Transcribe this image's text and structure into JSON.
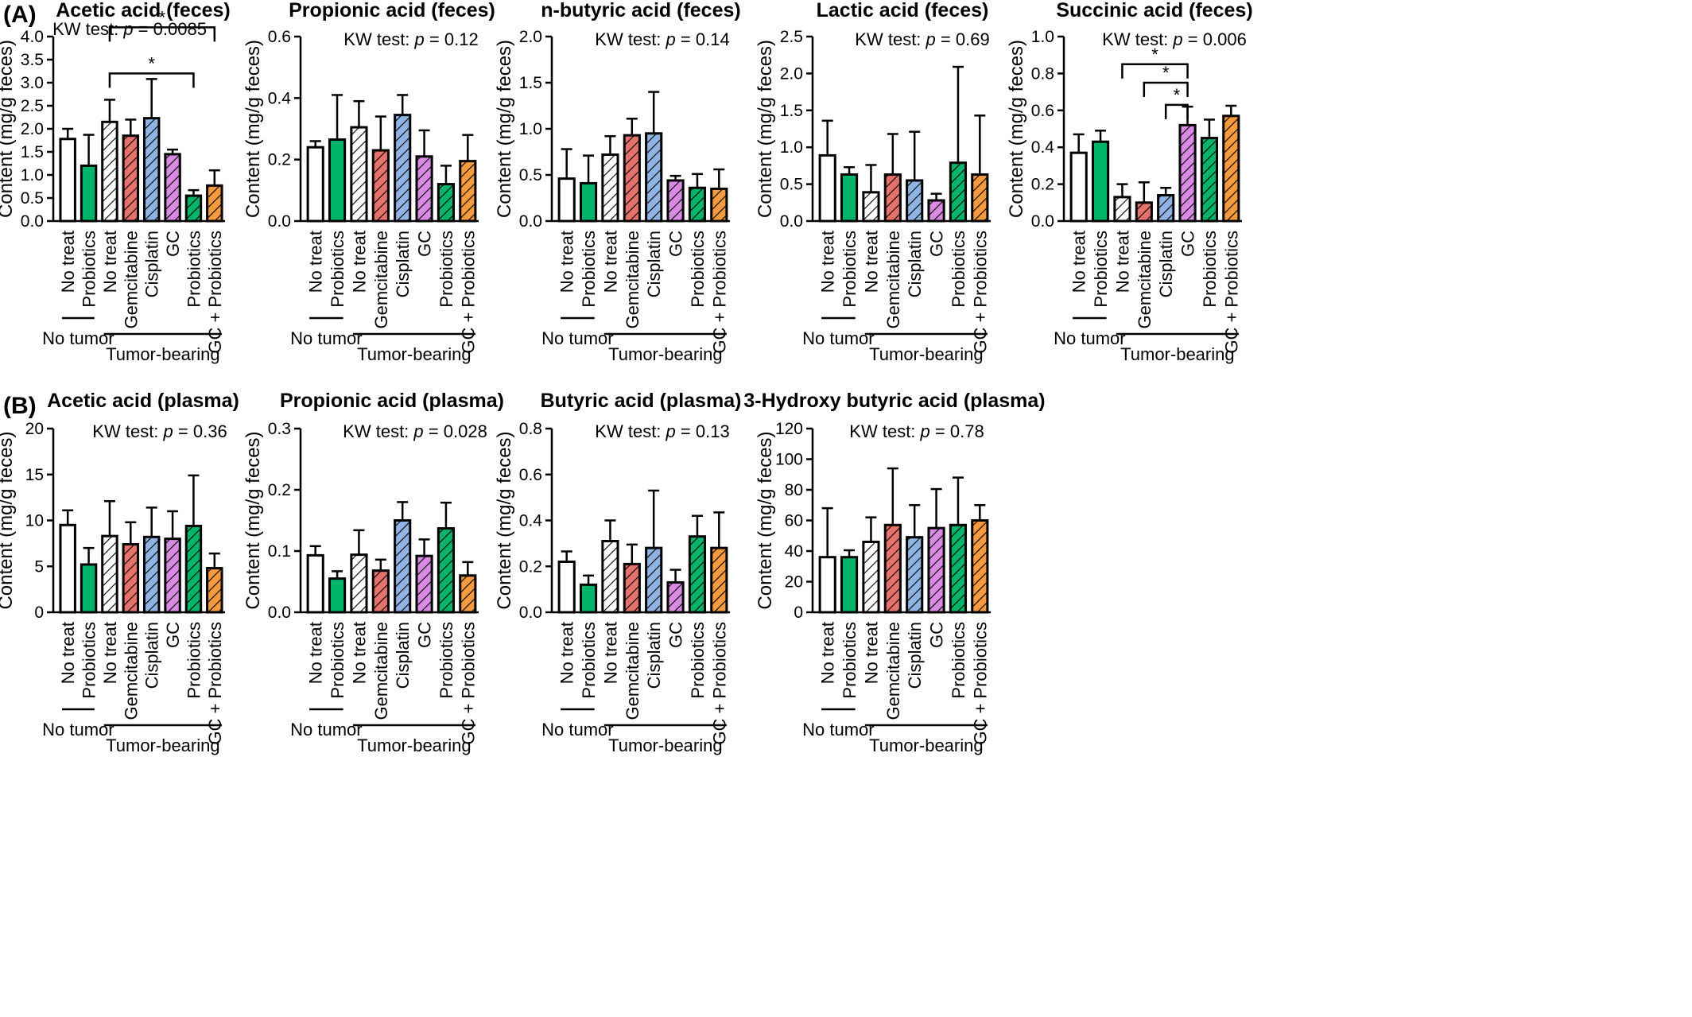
{
  "panels": [
    {
      "label": "(A)"
    },
    {
      "label": "(B)"
    }
  ],
  "categories": [
    "No treat",
    "Probiotics",
    "No treat",
    "Gemcitabine",
    "Cisplatin",
    "GC",
    "Probiotics",
    "GC + Probiotics"
  ],
  "groups": {
    "no_tumor": "No tumor",
    "tumor_bearing": "Tumor-bearing"
  },
  "series_colors": [
    "#ffffff",
    "#00b56a",
    "#ffffff",
    "#e5736c",
    "#8fb4e3",
    "#d98be3",
    "#00b56a",
    "#f59a3e"
  ],
  "series_hatched": [
    false,
    false,
    true,
    true,
    true,
    true,
    true,
    true
  ],
  "chart_data": [
    {
      "type": "bar",
      "panel": 0,
      "title": "Acetic acid (feces)",
      "stat_prefix": "KW test: ",
      "stat_p": "p",
      "stat_value": " = 0.0085",
      "ylabel": "Content (mg/g feces)",
      "ylim": [
        0,
        4
      ],
      "yticks": [
        "0.0",
        "0.5",
        "1.0",
        "1.5",
        "2.0",
        "2.5",
        "3.0",
        "3.5",
        "4.0"
      ],
      "categories": [
        "No treat",
        "Probiotics",
        "No treat",
        "Gemcitabine",
        "Cisplatin",
        "GC",
        "Probiotics",
        "GC + Probiotics"
      ],
      "values": [
        1.78,
        1.2,
        2.15,
        1.85,
        2.23,
        1.45,
        0.55,
        0.77
      ],
      "errors": [
        0.22,
        0.67,
        0.48,
        0.35,
        0.85,
        0.1,
        0.12,
        0.33
      ],
      "significance": [
        {
          "from": 2,
          "to": 7,
          "level": 4.2,
          "label": "*"
        },
        {
          "from": 2,
          "to": 6,
          "level": 3.2,
          "label": "*"
        }
      ]
    },
    {
      "type": "bar",
      "panel": 0,
      "title": "Propionic  acid (feces)",
      "stat_prefix": "KW test: ",
      "stat_p": "p",
      "stat_value": " = 0.12",
      "ylabel": "Content (mg/g feces)",
      "ylim": [
        0,
        0.6
      ],
      "yticks": [
        "0.0",
        "0.2",
        "0.4",
        "0.6"
      ],
      "categories": [
        "No treat",
        "Probiotics",
        "No treat",
        "Gemcitabine",
        "Cisplatin",
        "GC",
        "Probiotics",
        "GC + Probiotics"
      ],
      "values": [
        0.24,
        0.265,
        0.305,
        0.23,
        0.345,
        0.21,
        0.12,
        0.195
      ],
      "errors": [
        0.02,
        0.145,
        0.085,
        0.11,
        0.065,
        0.085,
        0.06,
        0.085
      ],
      "significance": []
    },
    {
      "type": "bar",
      "panel": 0,
      "title": "n-butyric acid (feces)",
      "stat_prefix": "KW test: ",
      "stat_p": "p",
      "stat_value": " = 0.14",
      "ylabel": "Content (mg/g feces)",
      "ylim": [
        0,
        2
      ],
      "yticks": [
        "0.0",
        "0.5",
        "1.0",
        "1.5",
        "2.0"
      ],
      "categories": [
        "No treat",
        "Probiotics",
        "No treat",
        "Gemcitabine",
        "Cisplatin",
        "GC",
        "Probiotics",
        "GC + Probiotics"
      ],
      "values": [
        0.46,
        0.41,
        0.72,
        0.93,
        0.95,
        0.44,
        0.36,
        0.35
      ],
      "errors": [
        0.32,
        0.3,
        0.2,
        0.18,
        0.45,
        0.05,
        0.15,
        0.21
      ],
      "significance": []
    },
    {
      "type": "bar",
      "panel": 0,
      "title": "Lactic acid (feces)",
      "stat_prefix": "KW test: ",
      "stat_p": "p",
      "stat_value": " = 0.69",
      "ylabel": "Content (mg/g feces)",
      "ylim": [
        0,
        2.5
      ],
      "yticks": [
        "0.0",
        "0.5",
        "1.0",
        "1.5",
        "2.0",
        "2.5"
      ],
      "categories": [
        "No treat",
        "Probiotics",
        "No treat",
        "Gemcitabine",
        "Cisplatin",
        "GC",
        "Probiotics",
        "GC + Probiotics"
      ],
      "values": [
        0.89,
        0.63,
        0.39,
        0.63,
        0.55,
        0.28,
        0.79,
        0.63
      ],
      "errors": [
        0.47,
        0.1,
        0.37,
        0.55,
        0.66,
        0.09,
        1.3,
        0.8
      ],
      "significance": []
    },
    {
      "type": "bar",
      "panel": 0,
      "title": "Succinic acid (feces)",
      "stat_prefix": "KW test: ",
      "stat_p": "p",
      "stat_value": " = 0.006",
      "ylabel": "Content (mg/g feces)",
      "ylim": [
        0,
        1
      ],
      "yticks": [
        "0.0",
        "0.2",
        "0.4",
        "0.6",
        "0.8",
        "1.0"
      ],
      "categories": [
        "No treat",
        "Probiotics",
        "No treat",
        "Gemcitabine",
        "Cisplatin",
        "GC",
        "Probiotics",
        "GC + Probiotics"
      ],
      "values": [
        0.37,
        0.43,
        0.13,
        0.1,
        0.14,
        0.52,
        0.45,
        0.57
      ],
      "errors": [
        0.1,
        0.06,
        0.07,
        0.11,
        0.04,
        0.1,
        0.1,
        0.055
      ],
      "significance": [
        {
          "from": 2,
          "to": 5,
          "level": 0.85,
          "label": "*"
        },
        {
          "from": 3,
          "to": 5,
          "level": 0.75,
          "label": "*"
        },
        {
          "from": 4,
          "to": 5,
          "level": 0.63,
          "label": "*"
        }
      ]
    },
    {
      "type": "bar",
      "panel": 1,
      "title": "Acetic acid (plasma)",
      "stat_prefix": "KW test: ",
      "stat_p": "p",
      "stat_value": " = 0.36",
      "ylabel": "Content (mg/g feces)",
      "ylim": [
        0,
        20
      ],
      "yticks": [
        "0",
        "5",
        "10",
        "15",
        "20"
      ],
      "categories": [
        "No treat",
        "Probiotics",
        "No treat",
        "Gemcitabine",
        "Cisplatin",
        "GC",
        "Probiotics",
        "GC + Probiotics"
      ],
      "values": [
        9.5,
        5.2,
        8.3,
        7.4,
        8.2,
        8.0,
        9.4,
        4.8
      ],
      "errors": [
        1.6,
        1.8,
        3.8,
        2.4,
        3.2,
        3.0,
        5.5,
        1.6
      ],
      "significance": []
    },
    {
      "type": "bar",
      "panel": 1,
      "title": "Propionic acid (plasma)",
      "stat_prefix": "KW test: ",
      "stat_p": "p",
      "stat_value": " = 0.028",
      "ylabel": "Content (mg/g feces)",
      "ylim": [
        0,
        0.3
      ],
      "yticks": [
        "0.0",
        "0.1",
        "0.2",
        "0.3"
      ],
      "categories": [
        "No treat",
        "Probiotics",
        "No treat",
        "Gemcitabine",
        "Cisplatin",
        "GC",
        "Probiotics",
        "GC + Probiotics"
      ],
      "values": [
        0.093,
        0.055,
        0.094,
        0.068,
        0.15,
        0.092,
        0.137,
        0.06
      ],
      "errors": [
        0.015,
        0.012,
        0.04,
        0.018,
        0.03,
        0.027,
        0.042,
        0.022
      ],
      "significance": []
    },
    {
      "type": "bar",
      "panel": 1,
      "title": "Butyric acid (plasma)",
      "stat_prefix": "KW test: ",
      "stat_p": "p",
      "stat_value": " = 0.13",
      "ylabel": "Content (mg/g feces)",
      "ylim": [
        0,
        0.8
      ],
      "yticks": [
        "0.0",
        "0.2",
        "0.4",
        "0.6",
        "0.8"
      ],
      "categories": [
        "No treat",
        "Probiotics",
        "No treat",
        "Gemcitabine",
        "Cisplatin",
        "GC",
        "Probiotics",
        "GC + Probiotics"
      ],
      "values": [
        0.22,
        0.12,
        0.31,
        0.21,
        0.28,
        0.13,
        0.33,
        0.28
      ],
      "errors": [
        0.045,
        0.04,
        0.09,
        0.085,
        0.25,
        0.055,
        0.09,
        0.155
      ],
      "significance": []
    },
    {
      "type": "bar",
      "panel": 1,
      "title": "3-Hydroxy butyric acid (plasma)",
      "stat_prefix": "KW test: ",
      "stat_p": "p",
      "stat_value": " = 0.78",
      "ylabel": "Content (mg/g feces)",
      "ylim": [
        0,
        120
      ],
      "yticks": [
        "0",
        "20",
        "40",
        "60",
        "80",
        "100",
        "120"
      ],
      "categories": [
        "No treat",
        "Probiotics",
        "No treat",
        "Gemcitabine",
        "Cisplatin",
        "GC",
        "Probiotics",
        "GC + Probiotics"
      ],
      "values": [
        36,
        36,
        46,
        57,
        49,
        55,
        57,
        60
      ],
      "errors": [
        32,
        4.5,
        16,
        37,
        21,
        25.5,
        31,
        10
      ],
      "significance": []
    }
  ]
}
